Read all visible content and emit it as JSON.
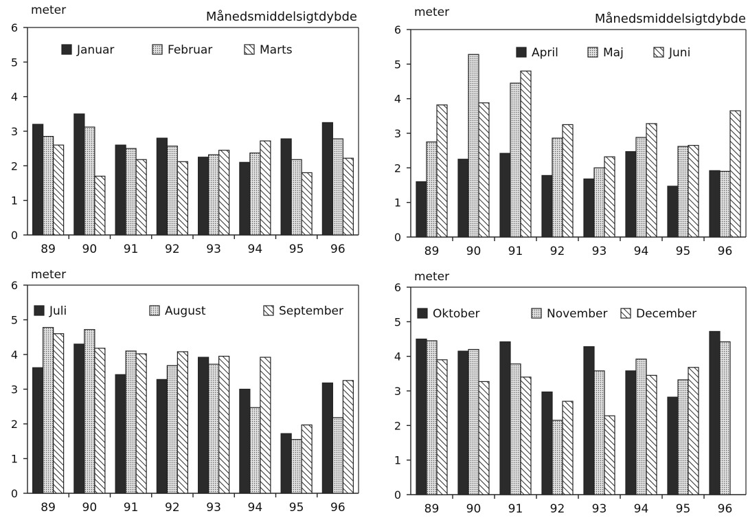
{
  "colors": {
    "dark": "#2b2b2b",
    "dotted_bg": "#d4d4d4",
    "hatch_line": "#2b2b2b",
    "axis": "#222222"
  },
  "chart_data": [
    {
      "type": "bar",
      "title": "Månedsmiddelsigtdybde",
      "ylabel": "meter",
      "ylim": [
        0,
        6
      ],
      "yticks": [
        "0",
        "1",
        "2",
        "3",
        "4",
        "5",
        "6"
      ],
      "categories": [
        "89",
        "90",
        "91",
        "92",
        "93",
        "94",
        "95",
        "96"
      ],
      "legend_position": "top",
      "series": [
        {
          "name": "Januar",
          "pattern": "solid",
          "values": [
            3.2,
            3.5,
            2.6,
            2.8,
            2.25,
            2.1,
            2.78,
            3.25
          ]
        },
        {
          "name": "Februar",
          "pattern": "dotted",
          "values": [
            2.85,
            3.12,
            2.5,
            2.57,
            2.32,
            2.37,
            2.18,
            2.78
          ]
        },
        {
          "name": "Marts",
          "pattern": "hatched",
          "values": [
            2.6,
            1.7,
            2.18,
            2.12,
            2.45,
            2.72,
            1.8,
            2.22
          ]
        }
      ]
    },
    {
      "type": "bar",
      "title": "Månedsmiddelsigtdybde",
      "ylabel": "meter",
      "ylim": [
        0,
        6
      ],
      "yticks": [
        "0",
        "1",
        "2",
        "3",
        "4",
        "5",
        "6"
      ],
      "categories": [
        "89",
        "90",
        "91",
        "92",
        "93",
        "94",
        "95",
        "96"
      ],
      "legend_position": "top-right",
      "series": [
        {
          "name": "April",
          "pattern": "solid",
          "values": [
            1.6,
            2.25,
            2.42,
            1.78,
            1.68,
            2.47,
            1.47,
            1.92
          ]
        },
        {
          "name": "Maj",
          "pattern": "dotted",
          "values": [
            2.75,
            5.28,
            4.45,
            2.86,
            2.0,
            2.88,
            2.62,
            1.9
          ]
        },
        {
          "name": "Juni",
          "pattern": "hatched",
          "values": [
            3.82,
            3.88,
            4.8,
            3.25,
            2.32,
            3.28,
            2.65,
            3.65
          ]
        }
      ]
    },
    {
      "type": "bar",
      "title": "",
      "ylabel": "meter",
      "ylim": [
        0,
        6
      ],
      "yticks": [
        "0",
        "1",
        "2",
        "3",
        "4",
        "5",
        "6"
      ],
      "categories": [
        "89",
        "90",
        "91",
        "92",
        "93",
        "94",
        "95",
        "96"
      ],
      "legend_position": "top",
      "series": [
        {
          "name": "Juli",
          "pattern": "solid",
          "values": [
            3.62,
            4.3,
            3.42,
            3.28,
            3.92,
            3.0,
            1.72,
            3.18
          ]
        },
        {
          "name": "August",
          "pattern": "dotted",
          "values": [
            4.78,
            4.72,
            4.1,
            3.68,
            3.72,
            2.47,
            1.55,
            2.18
          ]
        },
        {
          "name": "September",
          "pattern": "hatched",
          "values": [
            4.6,
            4.18,
            4.02,
            4.08,
            3.95,
            3.92,
            1.97,
            3.25
          ]
        }
      ]
    },
    {
      "type": "bar",
      "title": "",
      "ylabel": "meter",
      "ylim": [
        0,
        6
      ],
      "yticks": [
        "0",
        "1",
        "2",
        "3",
        "4",
        "5",
        "6"
      ],
      "categories": [
        "89",
        "90",
        "91",
        "92",
        "93",
        "94",
        "95",
        "96"
      ],
      "legend_position": "top",
      "series": [
        {
          "name": "Oktober",
          "pattern": "solid",
          "values": [
            4.5,
            4.15,
            4.42,
            2.97,
            4.28,
            3.58,
            2.82,
            4.72
          ]
        },
        {
          "name": "November",
          "pattern": "dotted",
          "values": [
            4.45,
            4.2,
            3.78,
            2.15,
            3.58,
            3.92,
            3.32,
            4.42
          ]
        },
        {
          "name": "December",
          "pattern": "hatched",
          "values": [
            3.9,
            3.27,
            3.4,
            2.7,
            2.28,
            3.45,
            3.68,
            null
          ]
        }
      ]
    }
  ]
}
